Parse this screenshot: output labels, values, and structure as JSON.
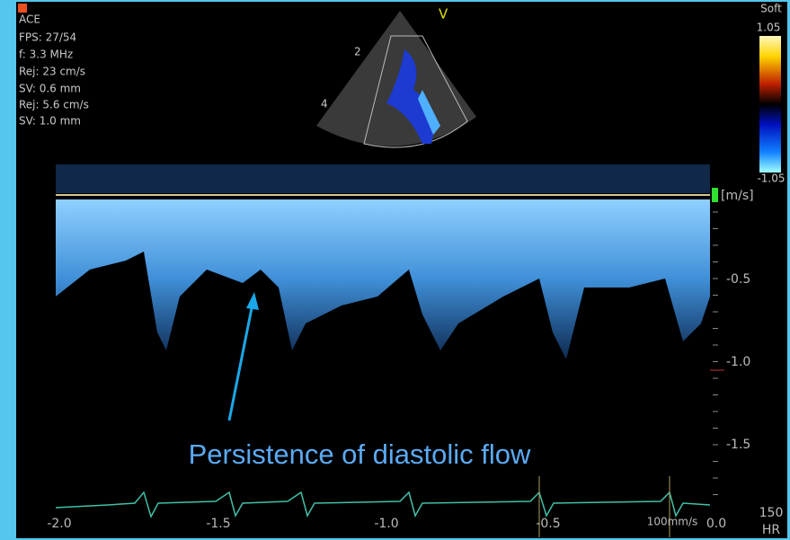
{
  "header": {
    "logo": "ACE",
    "settings": [
      "FPS: 27/54",
      "f: 3.3 MHz",
      "Rej: 23 cm/s",
      "SV: 0.6 mm",
      "Rej: 5.6 cm/s",
      "SV: 1.0 mm"
    ]
  },
  "sector": {
    "label_top": "V",
    "depth_marks": [
      "2",
      "4"
    ]
  },
  "color_bar": {
    "title": "Soft",
    "max": "1.05",
    "min": "-1.05"
  },
  "velocity_axis": {
    "unit": "[m/s]",
    "ticks": [
      "-0.5",
      "-1.0",
      "-1.5"
    ]
  },
  "time_axis": {
    "ticks": [
      "-2.0",
      "-1.5",
      "-1.0",
      "-0.5",
      "0.0"
    ],
    "sweep": "100mm/s"
  },
  "heart_rate": {
    "value": "150",
    "label": "HR"
  },
  "annotation": "Persistence of diastolic flow"
}
